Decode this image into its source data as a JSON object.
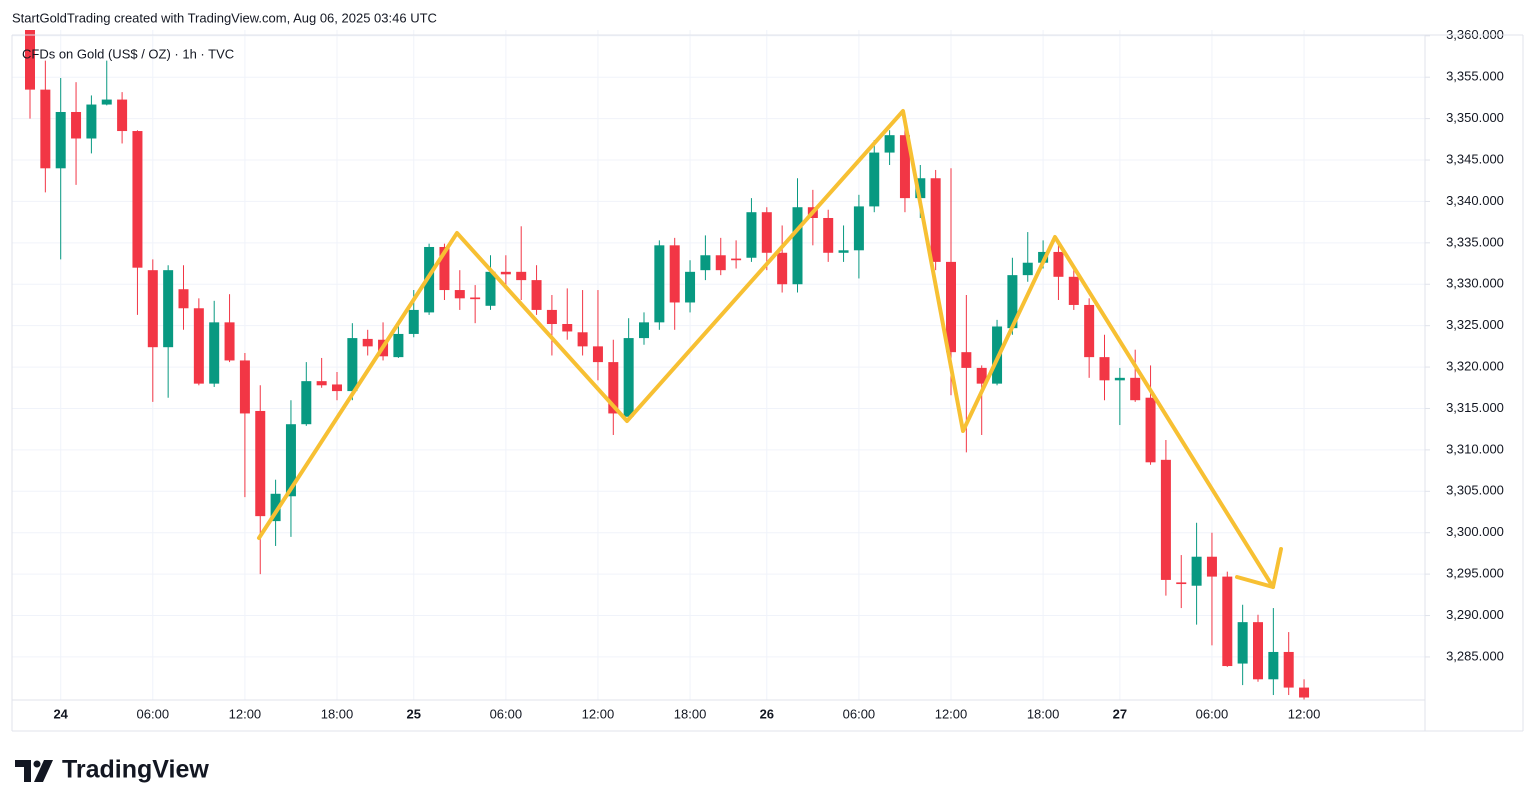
{
  "attribution": "StartGoldTrading created with TradingView.com, Aug 06, 2025 03:46 UTC",
  "brand": "TradingView",
  "chart_data": {
    "type": "candlestick",
    "title": "CFDs on Gold (US$ / OZ) · 1h · TVC",
    "categories": [
      null,
      null,
      "24",
      null,
      null,
      null,
      null,
      null,
      "06:00",
      null,
      null,
      null,
      null,
      null,
      "12:00",
      null,
      null,
      null,
      null,
      null,
      "18:00",
      null,
      null,
      null,
      null,
      "25",
      null,
      null,
      null,
      null,
      null,
      "06:00",
      null,
      null,
      null,
      null,
      null,
      "12:00",
      null,
      null,
      null,
      null,
      null,
      "18:00",
      null,
      null,
      null,
      null,
      "26",
      null,
      null,
      null,
      null,
      null,
      "06:00",
      null,
      null,
      null,
      null,
      null,
      "12:00",
      null,
      null,
      null,
      null,
      null,
      "18:00",
      null,
      null,
      null,
      null,
      "27",
      null,
      null,
      null,
      null,
      null,
      "06:00",
      null,
      null,
      null,
      null,
      null,
      "12:00"
    ],
    "open": [
      3361.5,
      3353.5,
      3344.0,
      3350.8,
      3347.6,
      3351.7,
      3352.3,
      3348.5,
      3331.7,
      3322.4,
      3329.4,
      3327.1,
      3318.0,
      3325.4,
      3320.8,
      3314.7,
      3301.4,
      3304.4,
      3313.1,
      3318.3,
      3317.9,
      3317.1,
      3323.4,
      3323.3,
      3321.2,
      3324.0,
      3326.6,
      3334.5,
      3329.3,
      3328.4,
      3327.4,
      3331.5,
      3331.5,
      3330.5,
      3326.9,
      3325.2,
      3324.2,
      3322.5,
      3320.6,
      3314.0,
      3323.5,
      3325.4,
      3334.7,
      3327.8,
      3331.7,
      3333.5,
      3333.1,
      3333.2,
      3338.7,
      3333.8,
      3330.0,
      3339.3,
      3338.0,
      3333.8,
      3334.1,
      3339.4,
      3345.9,
      3348.0,
      3340.4,
      3342.8,
      3332.7,
      3321.8,
      3319.9,
      3318.0,
      3324.7,
      3331.1,
      3332.6,
      3333.9,
      3330.9,
      3327.5,
      3321.2,
      3318.4,
      3318.7,
      3316.3,
      3308.8,
      3294.0,
      3293.6,
      3297.1,
      3294.7,
      3284.2,
      3289.2,
      3282.3,
      3285.6,
      3281.3
    ],
    "high": [
      3362.5,
      3357.0,
      3354.9,
      3354.4,
      3352.8,
      3357.0,
      3353.2,
      3348.6,
      3333.0,
      3332.3,
      3332.3,
      3328.3,
      3328.0,
      3328.8,
      3321.7,
      3317.8,
      3306.4,
      3316.0,
      3320.6,
      3321.1,
      3319.4,
      3325.3,
      3324.5,
      3325.4,
      3325.1,
      3329.3,
      3334.9,
      3334.9,
      3331.7,
      3329.9,
      3333.5,
      3333.5,
      3337.0,
      3332.3,
      3328.7,
      3329.5,
      3329.3,
      3329.3,
      3323.3,
      3325.9,
      3326.6,
      3335.3,
      3335.6,
      3332.9,
      3335.9,
      3335.6,
      3335.3,
      3340.4,
      3339.3,
      3337.1,
      3342.8,
      3341.4,
      3339.0,
      3337.1,
      3340.8,
      3347.4,
      3348.6,
      3350.0,
      3344.4,
      3343.8,
      3344.0,
      3328.7,
      3320.2,
      3325.7,
      3333.2,
      3336.3,
      3335.3,
      3335.3,
      3332.3,
      3328.3,
      3323.9,
      3319.9,
      3322.1,
      3320.2,
      3311.2,
      3297.3,
      3301.2,
      3300.0,
      3295.3,
      3291.3,
      3290.1,
      3290.9,
      3288.0,
      3282.3
    ],
    "low": [
      3350.0,
      3341.1,
      3333.0,
      3342.0,
      3345.8,
      3351.6,
      3347.0,
      3326.3,
      3315.8,
      3316.3,
      3324.5,
      3317.8,
      3317.6,
      3320.6,
      3304.3,
      3295.0,
      3298.4,
      3299.5,
      3312.9,
      3317.5,
      3316.0,
      3316.0,
      3321.4,
      3320.8,
      3321.1,
      3323.6,
      3326.3,
      3328.1,
      3326.9,
      3325.3,
      3326.9,
      3329.9,
      3328.1,
      3326.3,
      3321.4,
      3323.3,
      3321.4,
      3318.4,
      3311.8,
      3313.6,
      3322.7,
      3324.5,
      3324.5,
      3326.6,
      3330.5,
      3331.1,
      3331.9,
      3332.7,
      3331.7,
      3329.0,
      3329.0,
      3334.7,
      3332.7,
      3332.7,
      3330.7,
      3338.7,
      3344.4,
      3338.7,
      3338.0,
      3331.7,
      3316.6,
      3309.7,
      3311.8,
      3317.8,
      3323.9,
      3330.3,
      3331.9,
      3328.1,
      3326.9,
      3318.7,
      3316.0,
      3313.0,
      3315.8,
      3308.2,
      3292.4,
      3290.9,
      3288.9,
      3286.4,
      3283.8,
      3281.6,
      3282.0,
      3280.4,
      3280.4,
      3279.8
    ],
    "close": [
      3353.5,
      3344.0,
      3350.8,
      3347.6,
      3351.7,
      3352.3,
      3348.5,
      3332.0,
      3322.4,
      3331.7,
      3327.1,
      3318.0,
      3325.4,
      3320.8,
      3314.4,
      3302.0,
      3304.7,
      3313.1,
      3318.3,
      3317.8,
      3317.1,
      3323.5,
      3322.5,
      3321.3,
      3324.0,
      3326.9,
      3334.5,
      3329.3,
      3328.3,
      3328.2,
      3331.5,
      3331.2,
      3330.5,
      3326.9,
      3325.2,
      3324.3,
      3322.5,
      3320.6,
      3314.4,
      3323.5,
      3325.4,
      3334.7,
      3327.8,
      3331.5,
      3333.5,
      3331.7,
      3332.9,
      3338.7,
      3333.8,
      3330.0,
      3339.3,
      3338.0,
      3333.8,
      3334.1,
      3339.4,
      3345.9,
      3348.0,
      3340.4,
      3342.8,
      3332.7,
      3321.8,
      3319.9,
      3318.0,
      3324.9,
      3331.1,
      3332.6,
      3333.9,
      3330.9,
      3327.5,
      3321.2,
      3318.4,
      3318.7,
      3316.0,
      3308.5,
      3294.3,
      3293.8,
      3297.1,
      3294.7,
      3283.9,
      3289.2,
      3282.3,
      3285.6,
      3281.3,
      3280.1
    ],
    "up_color": "#089981",
    "down_color": "#f23645",
    "ylim": [
      3279.8,
      3360.7
    ],
    "yticks": [
      {
        "value": 3285,
        "label": "3,285.000"
      },
      {
        "value": 3290,
        "label": "3,290.000"
      },
      {
        "value": 3295,
        "label": "3,295.000"
      },
      {
        "value": 3300,
        "label": "3,300.000"
      },
      {
        "value": 3305,
        "label": "3,305.000"
      },
      {
        "value": 3310,
        "label": "3,310.000"
      },
      {
        "value": 3315,
        "label": "3,315.000"
      },
      {
        "value": 3320,
        "label": "3,320.000"
      },
      {
        "value": 3325,
        "label": "3,325.000"
      },
      {
        "value": 3330,
        "label": "3,330.000"
      },
      {
        "value": 3335,
        "label": "3,335.000"
      },
      {
        "value": 3340,
        "label": "3,340.000"
      },
      {
        "value": 3345,
        "label": "3,345.000"
      },
      {
        "value": 3350,
        "label": "3,350.000"
      },
      {
        "value": 3355,
        "label": "3,355.000"
      },
      {
        "value": 3360,
        "label": "3,360.000"
      }
    ],
    "grid": true
  }
}
